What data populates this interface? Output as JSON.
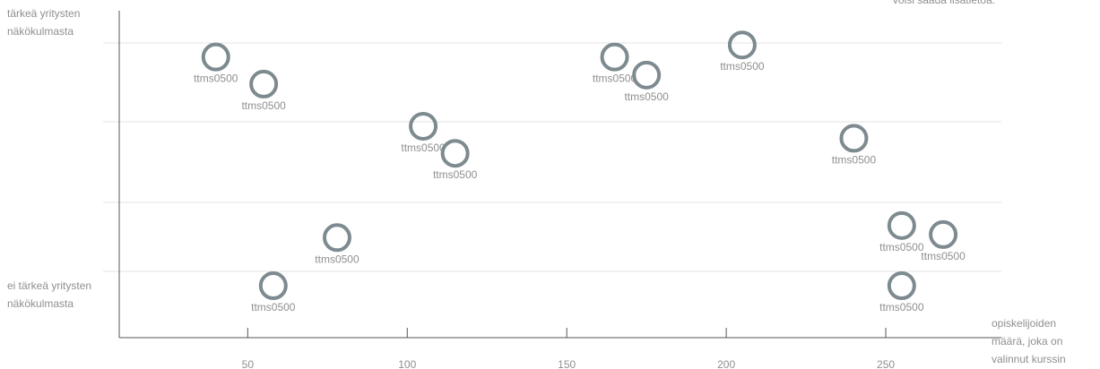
{
  "chart_data": {
    "type": "scatter",
    "title": "",
    "note": "voisi saada lisätietoa.",
    "ylabel_top": [
      "tärkeä yritysten",
      "näkökulmasta"
    ],
    "ylabel_bottom": [
      "ei tärkeä yritysten",
      "näkökulmasta"
    ],
    "xlabel": [
      "opiskelijoiden",
      "määrä, joka on",
      "valinnut kurssin"
    ],
    "xlim": [
      10,
      275
    ],
    "ylim": [
      0,
      100
    ],
    "xticks": [
      50,
      100,
      150,
      200,
      250
    ],
    "yaxis_ticks_shown": false,
    "grid": "horizontal",
    "marker": "hollow-circle",
    "color": "#7d8a8f",
    "points": [
      {
        "x": 40,
        "y": 87,
        "label": "ttms0500"
      },
      {
        "x": 55,
        "y": 78,
        "label": "ttms0500"
      },
      {
        "x": 105,
        "y": 64,
        "label": "ttms0500"
      },
      {
        "x": 115,
        "y": 55,
        "label": "ttms0500"
      },
      {
        "x": 165,
        "y": 87,
        "label": "ttms0500"
      },
      {
        "x": 175,
        "y": 81,
        "label": "ttms0500"
      },
      {
        "x": 205,
        "y": 91,
        "label": "ttms0500"
      },
      {
        "x": 240,
        "y": 60,
        "label": "ttms0500"
      },
      {
        "x": 78,
        "y": 27,
        "label": "ttms0500"
      },
      {
        "x": 58,
        "y": 11,
        "label": "ttms0500"
      },
      {
        "x": 255,
        "y": 31,
        "label": "ttms0500"
      },
      {
        "x": 268,
        "y": 28,
        "label": "ttms0500"
      },
      {
        "x": 255,
        "y": 11,
        "label": "ttms0500"
      }
    ]
  }
}
